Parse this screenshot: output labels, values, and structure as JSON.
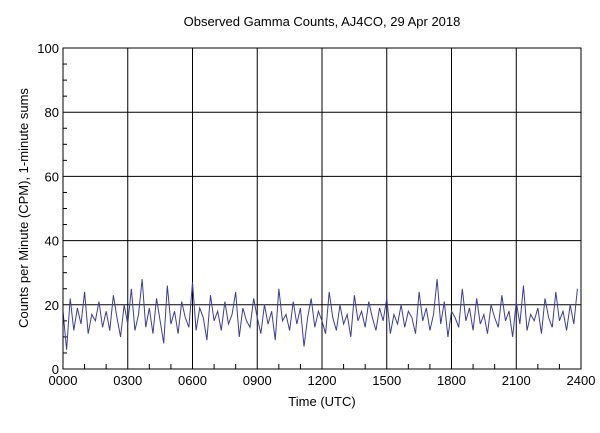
{
  "chart_data": {
    "type": "line",
    "title": "Observed Gamma Counts, AJ4CO, 29 Apr 2018",
    "xlabel": "Time (UTC)",
    "ylabel": "Counts per Minute (CPM), 1-minute sums",
    "xlim": [
      "0000",
      "2400"
    ],
    "ylim": [
      0,
      100
    ],
    "x_ticks": [
      "0000",
      "0300",
      "0600",
      "0900",
      "1200",
      "1500",
      "1800",
      "2100",
      "2400"
    ],
    "y_ticks": [
      "0",
      "20",
      "40",
      "60",
      "80",
      "100"
    ],
    "grid": true,
    "line_color": "#3c3c9c",
    "series": [
      {
        "x": [
          "0000",
          "0010",
          "0020",
          "0030",
          "0040",
          "0050",
          "0100",
          "0110",
          "0120",
          "0130",
          "0140",
          "0150",
          "0200",
          "0210",
          "0220",
          "0230",
          "0240",
          "0250",
          "0300",
          "0310",
          "0320",
          "0330",
          "0340",
          "0350",
          "0400",
          "0410",
          "0420",
          "0430",
          "0440",
          "0450",
          "0500",
          "0510",
          "0520",
          "0530",
          "0540",
          "0550",
          "0600",
          "0610",
          "0620",
          "0630",
          "0640",
          "0650",
          "0700",
          "0710",
          "0720",
          "0730",
          "0740",
          "0750",
          "0800",
          "0810",
          "0820",
          "0830",
          "0840",
          "0850",
          "0900",
          "0910",
          "0920",
          "0930",
          "0940",
          "0950",
          "1000",
          "1010",
          "1020",
          "1030",
          "1040",
          "1050",
          "1100",
          "1110",
          "1120",
          "1130",
          "1140",
          "1150",
          "1200",
          "1210",
          "1220",
          "1230",
          "1240",
          "1250",
          "1300",
          "1310",
          "1320",
          "1330",
          "1340",
          "1350",
          "1400",
          "1410",
          "1420",
          "1430",
          "1440",
          "1450",
          "1500",
          "1510",
          "1520",
          "1530",
          "1540",
          "1550",
          "1600",
          "1610",
          "1620",
          "1630",
          "1640",
          "1650",
          "1700",
          "1710",
          "1720",
          "1730",
          "1740",
          "1750",
          "1800",
          "1810",
          "1820",
          "1830",
          "1840",
          "1850",
          "1900",
          "1910",
          "1920",
          "1930",
          "1940",
          "1950",
          "2000",
          "2010",
          "2020",
          "2030",
          "2040",
          "2050",
          "2100",
          "2110",
          "2120",
          "2130",
          "2140",
          "2150",
          "2200",
          "2210",
          "2220",
          "2230",
          "2240",
          "2250",
          "2300",
          "2310",
          "2320",
          "2330",
          "2340",
          "2350"
        ],
        "values": [
          18,
          6,
          22,
          12,
          19,
          14,
          24,
          11,
          17,
          15,
          21,
          13,
          18,
          12,
          23,
          16,
          10,
          20,
          14,
          25,
          12,
          17,
          28,
          13,
          19,
          11,
          22,
          15,
          8,
          26,
          14,
          18,
          11,
          21,
          16,
          13,
          27,
          12,
          19,
          16,
          9,
          23,
          15,
          18,
          12,
          21,
          14,
          17,
          24,
          10,
          19,
          15,
          13,
          22,
          16,
          11,
          20,
          14,
          18,
          9,
          25,
          15,
          17,
          12,
          21,
          14,
          19,
          7,
          16,
          22,
          13,
          18,
          15,
          11,
          24,
          16,
          12,
          20,
          14,
          17,
          10,
          23,
          15,
          18,
          13,
          21,
          16,
          12,
          19,
          15,
          22,
          11,
          17,
          14,
          20,
          13,
          18,
          16,
          11,
          24,
          15,
          19,
          12,
          17,
          28,
          14,
          21,
          10,
          18,
          16,
          13,
          25,
          15,
          19,
          12,
          22,
          14,
          17,
          11,
          20,
          16,
          13,
          23,
          15,
          18,
          10,
          21,
          14,
          26,
          12,
          17,
          15,
          19,
          11,
          22,
          16,
          13,
          24,
          15,
          18,
          12,
          20,
          14,
          25
        ]
      }
    ]
  }
}
